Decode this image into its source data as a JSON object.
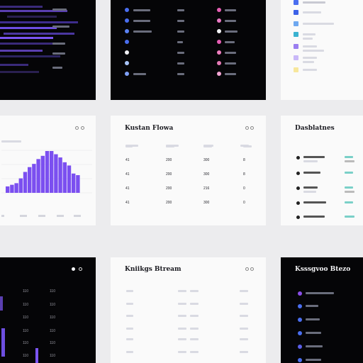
{
  "colors": {
    "accent": "#7b4ff0",
    "accent_light": "#a990f8",
    "dark_bg": "#050507",
    "light_bg": "#fafafa"
  },
  "card_chart": {
    "chart_data": {
      "type": "bar",
      "values": [
        4,
        5,
        6,
        9,
        13,
        16,
        18,
        21,
        23,
        26,
        26,
        24,
        22,
        19,
        17,
        12,
        11
      ],
      "color": "#7b4ff0",
      "grid": true,
      "title": "",
      "xlabel": "",
      "ylabel": ""
    }
  },
  "card_table1": {
    "title": "Kustan Flowa",
    "rows": [
      [
        "",
        "",
        "",
        ""
      ],
      [
        "41",
        "200",
        "300",
        "8"
      ],
      [
        "41",
        "200",
        "300",
        "8"
      ],
      [
        "41",
        "200",
        "216",
        "0"
      ],
      [
        "41",
        "200",
        "300",
        "0"
      ]
    ]
  },
  "card_list": {
    "title": "Dasblatnes"
  },
  "card_table2": {
    "title": "Kniikgs Btream",
    "rows": [
      [
        "",
        "",
        "",
        ""
      ],
      [
        "",
        "",
        "",
        ""
      ],
      [
        "",
        "",
        "",
        ""
      ],
      [
        "",
        "",
        "",
        ""
      ],
      [
        "",
        "",
        "",
        ""
      ],
      [
        "",
        "",
        "",
        ""
      ]
    ]
  },
  "card_dark_list": {
    "title": "Ksssgvoo Btezo"
  },
  "card_dark_table": {
    "rows": [
      [
        "110",
        "110"
      ],
      [
        "110",
        "110"
      ],
      [
        "110",
        "110"
      ],
      [
        "110",
        "110"
      ],
      [
        "110",
        "110"
      ],
      [
        "110",
        "110"
      ]
    ]
  }
}
